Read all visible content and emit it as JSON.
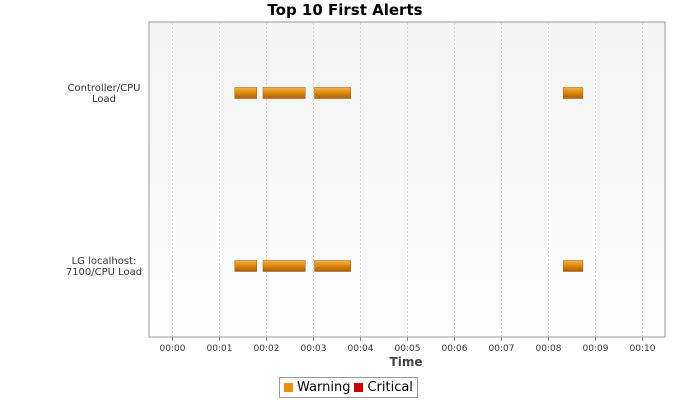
{
  "chart_data": {
    "type": "gantt",
    "title": "Top 10 First Alerts",
    "xlabel": "Time",
    "ylabel": "",
    "x_ticks": [
      "00:00",
      "00:01",
      "00:02",
      "00:03",
      "00:04",
      "00:05",
      "00:06",
      "00:07",
      "00:08",
      "00:09",
      "00:10"
    ],
    "xlim": [
      -0.5,
      10.5
    ],
    "x_unit": "minutes",
    "grid": true,
    "legend": {
      "placement": "bottom",
      "entries": [
        {
          "name": "Warning",
          "color": "#e8930c"
        },
        {
          "name": "Critical",
          "color": "#cc0000"
        }
      ]
    },
    "categories": [
      {
        "label_lines": [
          "Controller/CPU",
          "Load"
        ]
      },
      {
        "label_lines": [
          "LG localhost:",
          "7100/CPU Load"
        ]
      }
    ],
    "series": [
      {
        "category": 0,
        "level": "Warning",
        "intervals": [
          [
            1.33,
            1.8
          ],
          [
            1.93,
            2.83
          ],
          [
            3.03,
            3.8
          ],
          [
            8.33,
            8.75
          ]
        ]
      },
      {
        "category": 1,
        "level": "Warning",
        "intervals": [
          [
            1.33,
            1.8
          ],
          [
            1.93,
            2.83
          ],
          [
            3.03,
            3.8
          ],
          [
            8.33,
            8.75
          ]
        ]
      }
    ]
  }
}
